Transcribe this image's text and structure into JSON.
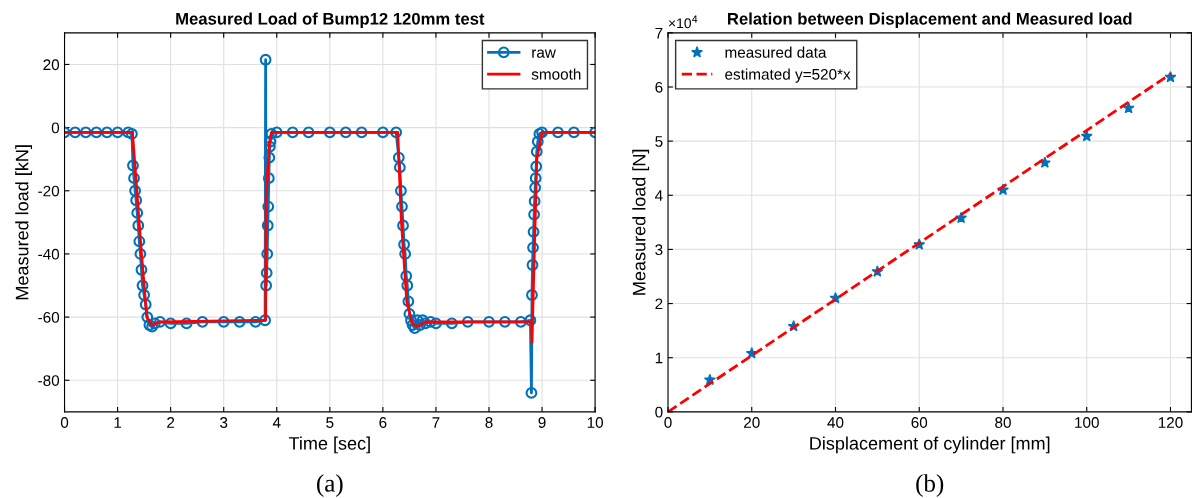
{
  "chart_data": [
    {
      "type": "line",
      "title": "Measured Load of Bump12 120mm test",
      "xlabel": "Time [sec]",
      "ylabel": "Measured load [kN]",
      "xlim": [
        0,
        10
      ],
      "xticks": [
        0,
        1,
        2,
        3,
        4,
        5,
        6,
        7,
        8,
        9,
        10
      ],
      "ylim": [
        -90,
        30
      ],
      "yticks": [
        -80,
        -60,
        -40,
        -20,
        0,
        20
      ],
      "grid": true,
      "legend": "top right",
      "annotations": [
        "(a)"
      ],
      "series": [
        {
          "name": "raw",
          "color": "#0072bd",
          "marker": "circle",
          "x": [
            0,
            0.2,
            0.4,
            0.6,
            0.8,
            1.0,
            1.2,
            1.27,
            1.29,
            1.31,
            1.33,
            1.35,
            1.37,
            1.39,
            1.41,
            1.43,
            1.45,
            1.47,
            1.5,
            1.53,
            1.56,
            1.6,
            1.65,
            1.7,
            1.8,
            2.0,
            2.3,
            2.6,
            3.0,
            3.3,
            3.6,
            3.78,
            3.79,
            3.8,
            3.81,
            3.82,
            3.83,
            3.84,
            3.85,
            3.86,
            3.87,
            3.88,
            3.9,
            4.0,
            4.3,
            4.6,
            5.0,
            5.3,
            5.6,
            6.0,
            6.25,
            6.3,
            6.32,
            6.34,
            6.36,
            6.38,
            6.4,
            6.42,
            6.44,
            6.46,
            6.48,
            6.5,
            6.53,
            6.56,
            6.6,
            6.65,
            6.7,
            6.75,
            6.8,
            6.9,
            7.0,
            7.3,
            7.6,
            8.0,
            8.3,
            8.6,
            8.78,
            8.8,
            8.81,
            8.82,
            8.83,
            8.84,
            8.85,
            8.86,
            8.87,
            8.88,
            8.89,
            8.9,
            8.92,
            8.95,
            9.0,
            9.3,
            9.6,
            10.0
          ],
          "values": [
            -1.5,
            -1.5,
            -1.5,
            -1.5,
            -1.5,
            -1.5,
            -1.5,
            -2,
            -12,
            -16,
            -20,
            -23,
            -27,
            -31,
            -36,
            -40,
            -45,
            -50,
            -53,
            -56,
            -60,
            -62.5,
            -63,
            -62,
            -61.5,
            -62,
            -62,
            -61.5,
            -61.5,
            -61.5,
            -61.5,
            -61,
            21.5,
            -50,
            -46,
            -40,
            -31,
            -25,
            -16,
            -9.5,
            -6,
            -4.4,
            -2,
            -1.5,
            -1.5,
            -1.5,
            -1.5,
            -1.5,
            -1.5,
            -1.5,
            -1.5,
            -9.5,
            -12.6,
            -20,
            -25,
            -31,
            -37,
            -40,
            -47,
            -50,
            -55,
            -59,
            -61,
            -62.5,
            -63.5,
            -61,
            -62.5,
            -61,
            -62,
            -61.5,
            -62,
            -62,
            -61.5,
            -61.5,
            -61.5,
            -61.5,
            -61,
            -84,
            -53,
            -43.5,
            -38,
            -33,
            -27.5,
            -23.3,
            -19,
            -16,
            -12.3,
            -7.6,
            -4.4,
            -2,
            -1.5,
            -1.5,
            -1.5,
            -1.5
          ]
        },
        {
          "name": "smooth",
          "color": "#ff0000",
          "marker": "none",
          "x": [
            0,
            1.28,
            1.45,
            1.55,
            1.65,
            1.8,
            3.79,
            3.8,
            3.86,
            3.9,
            6.28,
            6.35,
            6.45,
            6.55,
            6.65,
            6.8,
            8.8,
            8.81,
            8.9,
            9.0,
            10.0
          ],
          "values": [
            -1.5,
            -1.5,
            -40,
            -60,
            -62.5,
            -61.5,
            -61,
            -22,
            -5,
            -1.5,
            -1.5,
            -30,
            -55,
            -62,
            -63,
            -61.5,
            -61.5,
            -68,
            -10,
            -1.5,
            -1.5
          ]
        }
      ]
    },
    {
      "type": "scatter",
      "title": "Relation between Displacement and Measured load",
      "xlabel": "Displacement of cylinder [mm]",
      "ylabel": "Measured load [N]",
      "xlim": [
        0,
        125
      ],
      "xticks": [
        0,
        20,
        40,
        60,
        80,
        100,
        120
      ],
      "ylim": [
        0,
        7
      ],
      "yticks": [
        0,
        1,
        2,
        3,
        4,
        5,
        6,
        7
      ],
      "grid": true,
      "legend": "top left",
      "annotations": [
        "×10$^{4}$",
        "(b)"
      ],
      "series": [
        {
          "name": "measured data",
          "color": "#0072bd",
          "marker": "star",
          "x": [
            10,
            20,
            30,
            40,
            50,
            60,
            70,
            80,
            90,
            100,
            110,
            120
          ],
          "values": [
            0.59,
            1.08,
            1.58,
            2.1,
            2.59,
            3.09,
            3.58,
            4.1,
            4.6,
            5.09,
            5.61,
            6.18
          ]
        },
        {
          "name": "estimated y=520*x",
          "type": "line",
          "color": "#ff0000",
          "marker": "none",
          "line_style": "dashed",
          "x": [
            0,
            120
          ],
          "values": [
            0,
            6.24
          ]
        }
      ]
    }
  ]
}
